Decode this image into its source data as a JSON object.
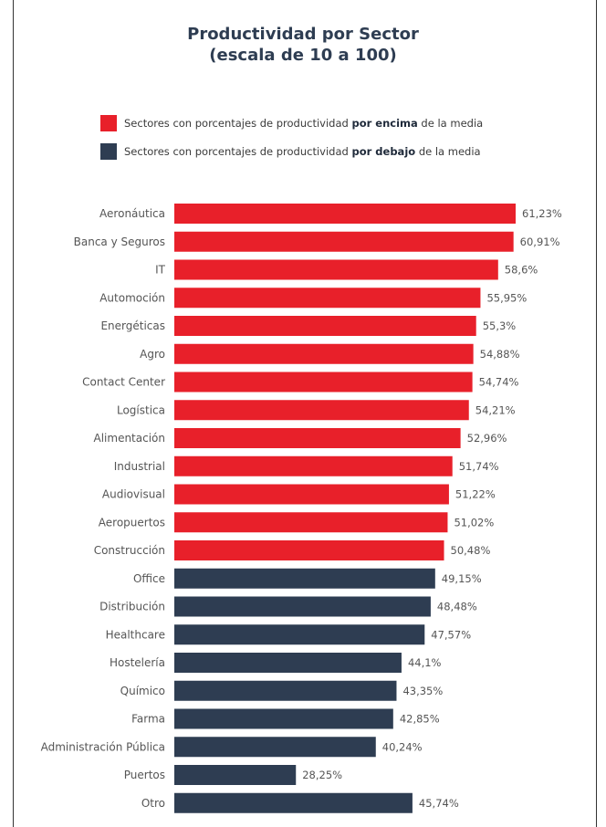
{
  "chart_data": {
    "type": "bar",
    "orientation": "horizontal",
    "title": "Productividad por Sector",
    "subtitle": "(escala de 10 a 100)",
    "legend": [
      {
        "prefix": "Sectores con porcentajes de productividad ",
        "bold": "por encima",
        "suffix": " de la media",
        "color": "#e8202a"
      },
      {
        "prefix": "Sectores con porcentajes de productividad ",
        "bold": "por debajo",
        "suffix": " de la media",
        "color": "#2e3d52"
      }
    ],
    "legend_placement": "top-left",
    "grid": false,
    "categories": [
      "Aeronáutica",
      "Banca y Seguros",
      "IT",
      "Automoción",
      "Energéticas",
      "Agro",
      "Contact Center",
      "Logística",
      "Alimentación",
      "Industrial",
      "Audiovisual",
      "Aeropuertos",
      "Construcción",
      "Office",
      "Distribución",
      "Healthcare",
      "Hostelería",
      "Químico",
      "Farma",
      "Administración Pública",
      "Puertos",
      "Otro"
    ],
    "values": [
      61.23,
      60.91,
      58.6,
      55.95,
      55.3,
      54.88,
      54.74,
      54.21,
      52.96,
      51.74,
      51.22,
      51.02,
      50.48,
      49.15,
      48.48,
      47.57,
      44.1,
      43.35,
      42.85,
      40.24,
      28.25,
      45.74
    ],
    "value_labels": [
      "61,23%",
      "60,91%",
      "58,6%",
      "55,95%",
      "55,3%",
      "54,88%",
      "54,74%",
      "54,21%",
      "52,96%",
      "51,74%",
      "51,22%",
      "51,02%",
      "50,48%",
      "49,15%",
      "48,48%",
      "47,57%",
      "44,1%",
      "43,35%",
      "42,85%",
      "40,24%",
      "28,25%",
      "45,74%"
    ],
    "group": [
      "above",
      "above",
      "above",
      "above",
      "above",
      "above",
      "above",
      "above",
      "above",
      "above",
      "above",
      "above",
      "above",
      "below",
      "below",
      "below",
      "below",
      "below",
      "below",
      "below",
      "below",
      "below"
    ],
    "colors": {
      "above": "#e8202a",
      "below": "#2e3d52"
    },
    "xlim": [
      10,
      65
    ]
  }
}
